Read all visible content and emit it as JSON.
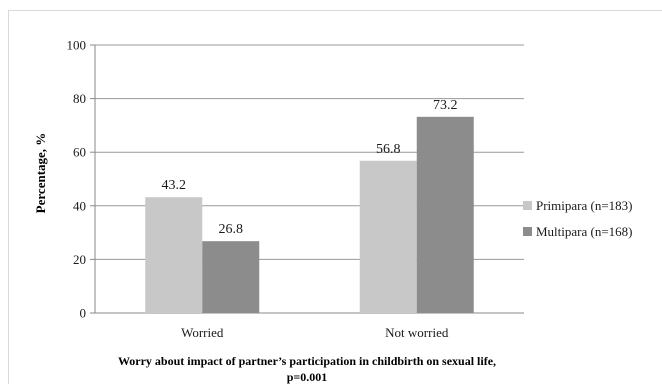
{
  "chart_data": {
    "type": "bar",
    "categories": [
      "Worried",
      "Not worried"
    ],
    "series": [
      {
        "name": "Primipara (n=183)",
        "values": [
          43.2,
          56.8
        ],
        "color": "#c8c8c8"
      },
      {
        "name": "Multipara (n=168)",
        "values": [
          26.8,
          73.2
        ],
        "color": "#8c8c8c"
      }
    ],
    "data_labels": [
      [
        "43.2",
        "56.8"
      ],
      [
        "26.8",
        "73.2"
      ]
    ],
    "ylabel": "Percentage, %",
    "xlabel_line1": "Worry about impact of partner’s participation in childbirth on sexual life,",
    "xlabel_line2": "p=0.001",
    "ylim": [
      0,
      100
    ],
    "yticks": [
      0,
      20,
      40,
      60,
      80,
      100
    ],
    "grid": true,
    "legend_position": "right"
  }
}
